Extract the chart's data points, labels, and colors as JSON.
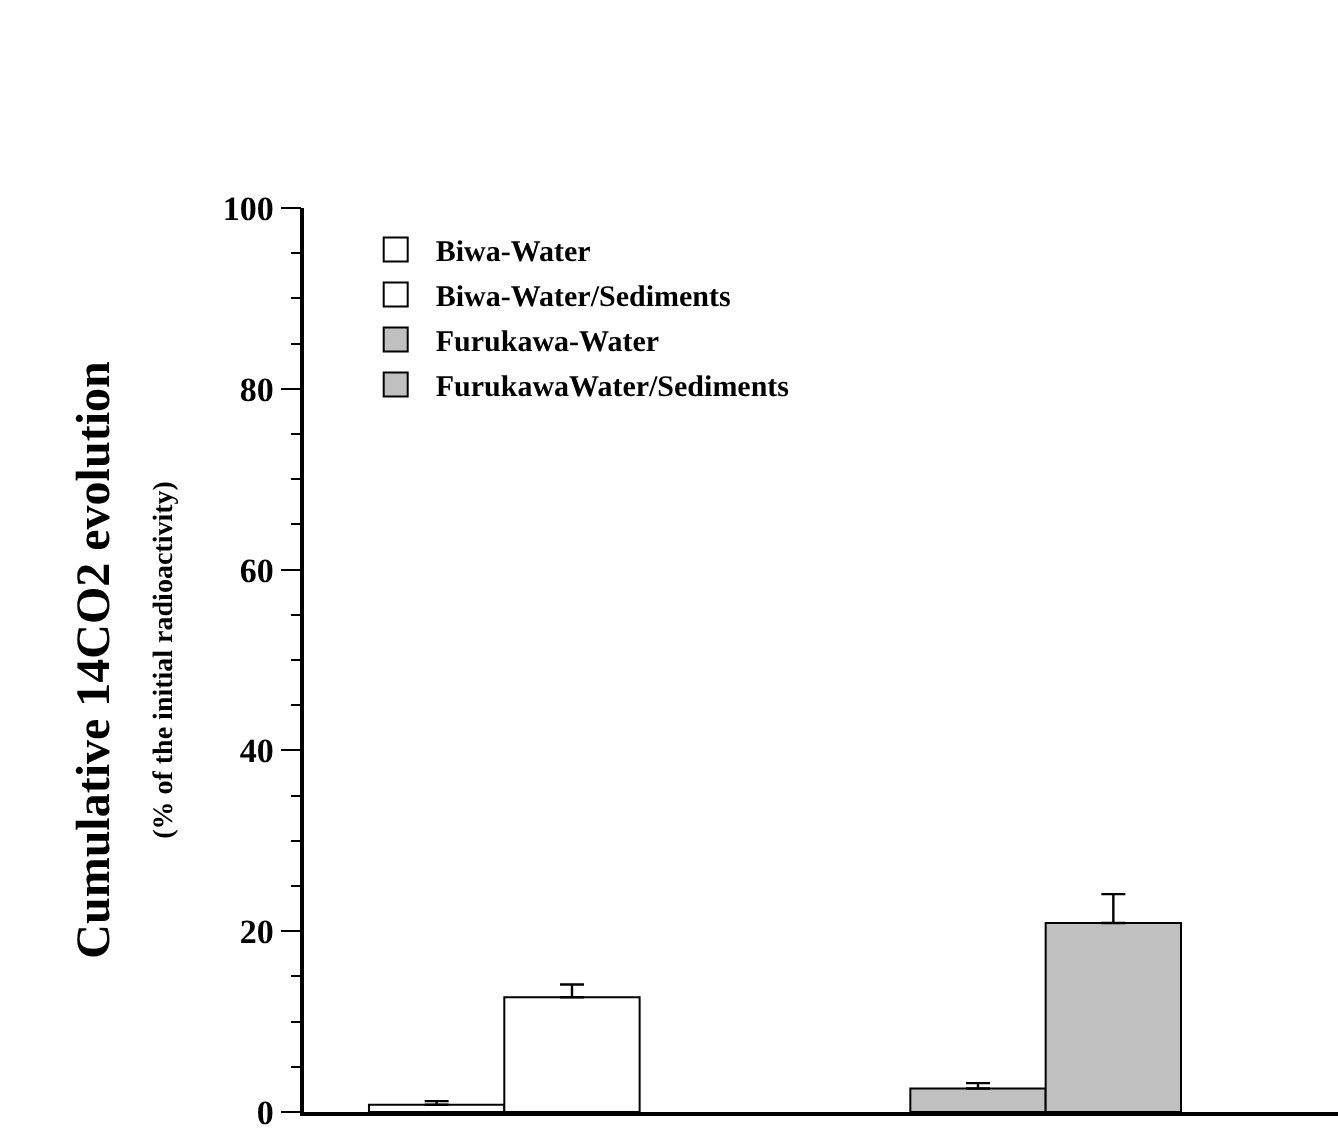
{
  "chart_data": {
    "type": "bar",
    "ylabel": "Cumulative 14CO2 evolution",
    "subtitle": "(% of the initial radioactivity)",
    "categories": [
      null,
      null
    ],
    "series": [
      {
        "name": "Biwa-Water",
        "color": "#ffffff",
        "values": [
          0.8,
          null
        ],
        "errors": [
          [
            0.8,
            1.2
          ],
          null
        ]
      },
      {
        "name": "Biwa-Water/Sediments",
        "color": "#ffffff",
        "values": [
          12.7,
          null
        ],
        "errors": [
          [
            12.7,
            14.1
          ],
          null
        ]
      },
      {
        "name": "Furukawa-Water",
        "color": "#c0c0c0",
        "values": [
          null,
          2.6
        ],
        "errors": [
          null,
          [
            2.6,
            3.2
          ]
        ]
      },
      {
        "name": "FurukawaWater/Sediments",
        "color": "#c0c0c0",
        "values": [
          null,
          20.9
        ],
        "errors": [
          null,
          [
            20.9,
            24.1
          ]
        ]
      }
    ],
    "ylim": [
      0,
      100
    ],
    "yticks": [
      0,
      20,
      40,
      60,
      80,
      100
    ],
    "legend": "top left"
  }
}
